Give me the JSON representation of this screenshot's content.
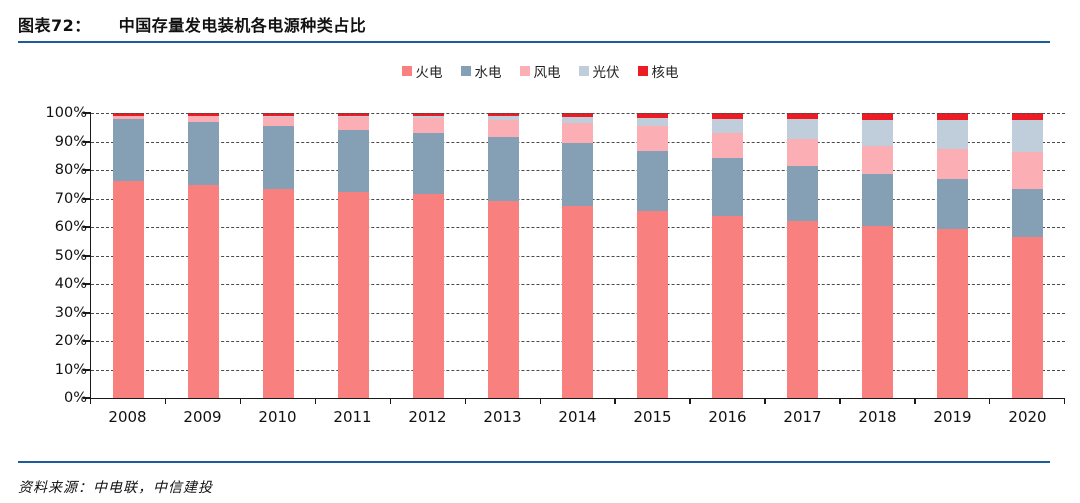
{
  "figure": {
    "label": "图表72：",
    "title": "中国存量发电装机各电源种类占比",
    "source": "资料来源：中电联，中信建投",
    "rule_color": "#1c5c9d"
  },
  "chart_data": {
    "type": "bar",
    "stacked": true,
    "percent_stacked": true,
    "title": "中国存量发电装机各电源种类占比",
    "xlabel": "",
    "ylabel": "",
    "ylim": [
      0,
      100
    ],
    "ytick_step": 10,
    "ytick_labels": [
      "0%",
      "10%",
      "20%",
      "30%",
      "40%",
      "50%",
      "60%",
      "70%",
      "80%",
      "90%",
      "100%"
    ],
    "grid": "dashed-horizontal",
    "legend_position": "top-center",
    "categories": [
      "2008",
      "2009",
      "2010",
      "2011",
      "2012",
      "2013",
      "2014",
      "2015",
      "2016",
      "2017",
      "2018",
      "2019",
      "2020"
    ],
    "series": [
      {
        "name": "火电",
        "key": "thermal",
        "color": "#f8807f",
        "values": [
          76.0,
          74.6,
          73.4,
          72.3,
          71.5,
          69.1,
          67.4,
          65.7,
          64.0,
          62.2,
          60.2,
          59.2,
          56.6
        ]
      },
      {
        "name": "水电",
        "key": "hydro",
        "color": "#85a0b5",
        "values": [
          21.8,
          22.2,
          22.2,
          21.9,
          21.6,
          22.3,
          22.2,
          21.0,
          20.1,
          19.3,
          18.5,
          17.7,
          16.8
        ]
      },
      {
        "name": "风电",
        "key": "wind",
        "color": "#fbafb4",
        "values": [
          1.1,
          2.0,
          3.1,
          4.3,
          5.3,
          6.1,
          7.0,
          8.6,
          9.0,
          9.2,
          9.7,
          10.4,
          12.8
        ]
      },
      {
        "name": "光伏",
        "key": "solar",
        "color": "#bfceda",
        "values": [
          0.0,
          0.0,
          0.1,
          0.3,
          0.5,
          1.3,
          1.9,
          2.9,
          4.7,
          7.3,
          9.2,
          10.2,
          11.5
        ]
      },
      {
        "name": "核电",
        "key": "nuclear",
        "color": "#ec1c24",
        "values": [
          1.1,
          1.2,
          1.2,
          1.2,
          1.1,
          1.2,
          1.5,
          1.8,
          2.2,
          2.0,
          2.4,
          2.5,
          2.3
        ]
      }
    ]
  }
}
